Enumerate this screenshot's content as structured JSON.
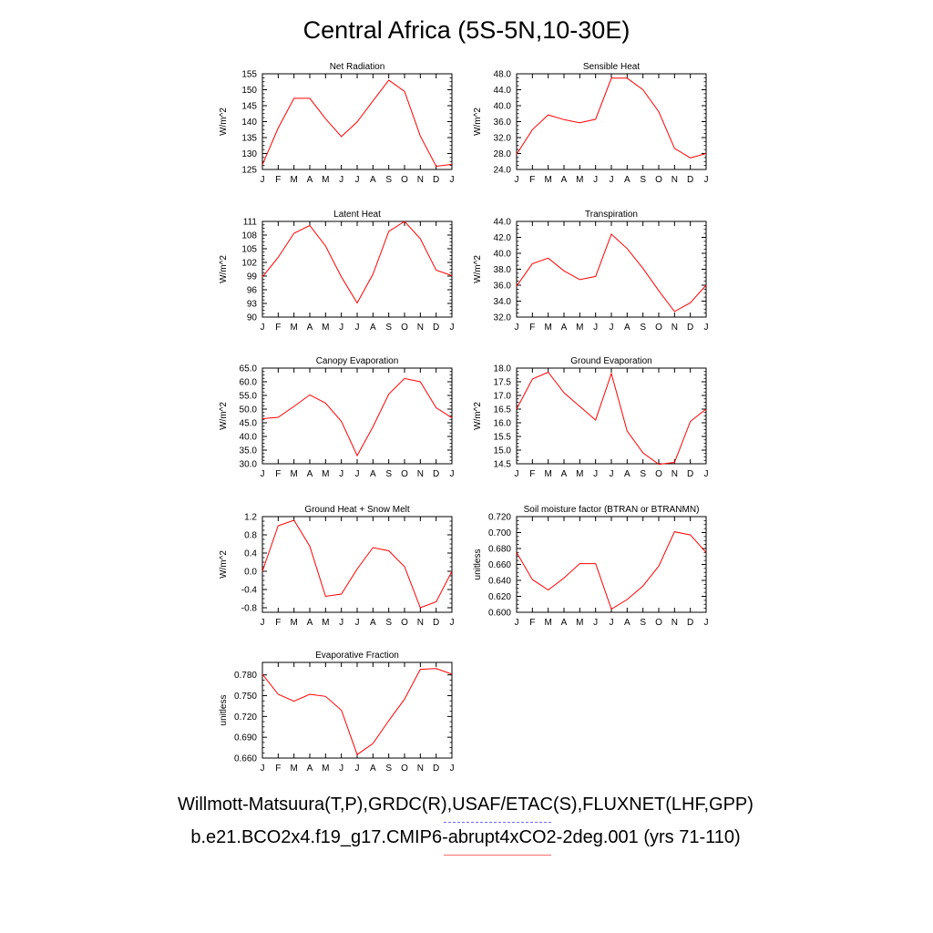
{
  "title": "Central Africa (5S-5N,10-30E)",
  "legend": {
    "observations": "Willmott-Matsuura(T,P),GRDC(R),USAF/ETAC(S),FLUXNET(LHF,GPP)",
    "model": "b.e21.BCO2x4.f19_g17.CMIP6-abrupt4xCO2-2deg.001 (yrs 71-110)",
    "observations_color": "#6b6bff",
    "model_color": "#ff6b6b"
  },
  "line_color": "#ff0000",
  "chart_data": [
    {
      "type": "line",
      "title": "Net Radiation",
      "ylabel": "W/m^2",
      "categories": [
        "J",
        "F",
        "M",
        "A",
        "M",
        "J",
        "J",
        "A",
        "S",
        "O",
        "N",
        "D",
        "J"
      ],
      "values": [
        126.5,
        138.0,
        147.3,
        147.3,
        140.9,
        135.3,
        139.9,
        146.5,
        153.0,
        149.5,
        135.5,
        126.0,
        126.6
      ],
      "ylim": [
        125,
        155
      ],
      "yticks": [
        "125",
        "130",
        "135",
        "140",
        "145",
        "150",
        "155"
      ]
    },
    {
      "type": "line",
      "title": "Sensible Heat",
      "ylabel": "W/m^2",
      "categories": [
        "J",
        "F",
        "M",
        "A",
        "M",
        "J",
        "J",
        "A",
        "S",
        "O",
        "N",
        "D",
        "J"
      ],
      "values": [
        27.8,
        34.0,
        37.7,
        36.5,
        35.7,
        36.6,
        46.9,
        46.9,
        44.0,
        38.5,
        29.3,
        26.9,
        28.0
      ],
      "ylim": [
        24,
        48
      ],
      "yticks": [
        "24.0",
        "28.0",
        "32.0",
        "36.0",
        "40.0",
        "44.0",
        "48.0"
      ]
    },
    {
      "type": "line",
      "title": "Latent Heat",
      "ylabel": "W/m^2",
      "categories": [
        "J",
        "F",
        "M",
        "A",
        "M",
        "J",
        "J",
        "A",
        "S",
        "O",
        "N",
        "D",
        "J"
      ],
      "values": [
        98.8,
        103.1,
        108.4,
        110.1,
        105.6,
        98.8,
        93.1,
        99.4,
        108.8,
        111.0,
        107.2,
        100.3,
        99.1
      ],
      "ylim": [
        90,
        111
      ],
      "yticks": [
        "90",
        "93",
        "96",
        "99",
        "102",
        "105",
        "108",
        "111"
      ]
    },
    {
      "type": "line",
      "title": "Transpiration",
      "ylabel": "W/m^2",
      "categories": [
        "J",
        "F",
        "M",
        "A",
        "M",
        "J",
        "J",
        "A",
        "S",
        "O",
        "N",
        "D",
        "J"
      ],
      "values": [
        35.9,
        38.7,
        39.4,
        37.8,
        36.7,
        37.1,
        42.4,
        40.6,
        38.1,
        35.3,
        32.7,
        33.8,
        36.0
      ],
      "ylim": [
        32,
        44
      ],
      "yticks": [
        "32.0",
        "34.0",
        "36.0",
        "38.0",
        "40.0",
        "42.0",
        "44.0"
      ]
    },
    {
      "type": "line",
      "title": "Canopy Evaporation",
      "ylabel": "W/m^2",
      "categories": [
        "J",
        "F",
        "M",
        "A",
        "M",
        "J",
        "J",
        "A",
        "S",
        "O",
        "N",
        "D",
        "J"
      ],
      "values": [
        46.5,
        47.0,
        51.0,
        55.2,
        52.2,
        45.5,
        33.0,
        43.5,
        55.5,
        61.2,
        60.0,
        50.5,
        46.8
      ],
      "ylim": [
        30,
        65
      ],
      "yticks": [
        "30.0",
        "35.0",
        "40.0",
        "45.0",
        "50.0",
        "55.0",
        "60.0",
        "65.0"
      ]
    },
    {
      "type": "line",
      "title": "Ground Evaporation",
      "ylabel": "W/m^2",
      "categories": [
        "J",
        "F",
        "M",
        "A",
        "M",
        "J",
        "J",
        "A",
        "S",
        "O",
        "N",
        "D",
        "J"
      ],
      "values": [
        16.5,
        17.6,
        17.85,
        17.1,
        16.6,
        16.1,
        17.8,
        15.7,
        14.9,
        14.48,
        14.55,
        16.05,
        16.5
      ],
      "ylim": [
        14.5,
        18.0
      ],
      "yticks": [
        "14.5",
        "15.0",
        "15.5",
        "16.0",
        "16.5",
        "17.0",
        "17.5",
        "18.0"
      ]
    },
    {
      "type": "line",
      "title": "Ground Heat + Snow Melt",
      "ylabel": "W/m^2",
      "categories": [
        "J",
        "F",
        "M",
        "A",
        "M",
        "J",
        "J",
        "A",
        "S",
        "O",
        "N",
        "D",
        "J"
      ],
      "values": [
        0.0,
        1.0,
        1.12,
        0.55,
        -0.55,
        -0.5,
        0.05,
        0.52,
        0.45,
        0.1,
        -0.8,
        -0.67,
        0.0
      ],
      "ylim": [
        -0.9,
        1.2
      ],
      "yticks": [
        "-0.8",
        "-0.4",
        "0.0",
        "0.4",
        "0.8",
        "1.2"
      ],
      "ytick_values": [
        -0.8,
        -0.4,
        0.0,
        0.4,
        0.8,
        1.2
      ]
    },
    {
      "type": "line",
      "title": "Soil moisture factor (BTRAN or BTRANMN)",
      "ylabel": "unitless",
      "categories": [
        "J",
        "F",
        "M",
        "A",
        "M",
        "J",
        "J",
        "A",
        "S",
        "O",
        "N",
        "D",
        "J"
      ],
      "values": [
        0.675,
        0.641,
        0.628,
        0.643,
        0.661,
        0.661,
        0.604,
        0.616,
        0.633,
        0.658,
        0.701,
        0.697,
        0.675
      ],
      "ylim": [
        0.6,
        0.72
      ],
      "yticks": [
        "0.600",
        "0.620",
        "0.640",
        "0.660",
        "0.680",
        "0.700",
        "0.720"
      ]
    },
    {
      "type": "line",
      "title": "Evaporative Fraction",
      "ylabel": "unitless",
      "categories": [
        "J",
        "F",
        "M",
        "A",
        "M",
        "J",
        "J",
        "A",
        "S",
        "O",
        "N",
        "D",
        "J"
      ],
      "values": [
        0.781,
        0.752,
        0.742,
        0.752,
        0.749,
        0.729,
        0.665,
        0.681,
        0.714,
        0.745,
        0.788,
        0.789,
        0.781
      ],
      "ylim": [
        0.66,
        0.798
      ],
      "yticks": [
        "0.660",
        "0.690",
        "0.720",
        "0.750",
        "0.780"
      ],
      "ytick_values": [
        0.66,
        0.69,
        0.72,
        0.75,
        0.78
      ]
    }
  ]
}
